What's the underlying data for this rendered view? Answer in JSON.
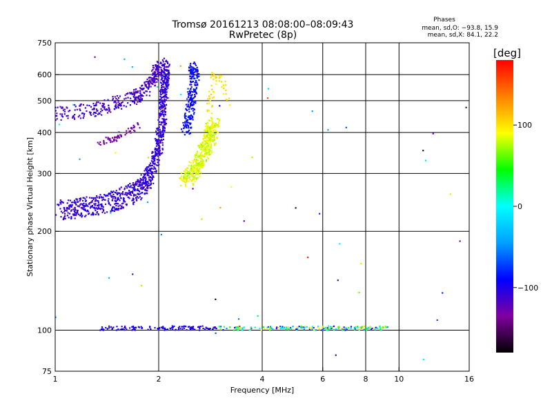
{
  "header": {
    "title_line1": "Tromsø 20161213 08:08:00–08:09:43",
    "title_line2": "RwPretec (8p)"
  },
  "stats": {
    "heading": "Phases",
    "line1": "mean, sd,O: −93.8, 15.9",
    "line2": "mean, sd,X:  84.1, 22.2"
  },
  "colorbar": {
    "label": "[deg]",
    "ticks": [
      {
        "value": 100,
        "label": "100"
      },
      {
        "value": 0,
        "label": "0"
      },
      {
        "value": -100,
        "label": "−100"
      }
    ],
    "range": [
      -180,
      180
    ],
    "scale_colors": [
      "#000000",
      "#8000a0",
      "#0000ff",
      "#00a0ff",
      "#00ffff",
      "#00ff00",
      "#ffff00",
      "#ff8000",
      "#ff0000"
    ]
  },
  "chart_data": {
    "type": "scatter",
    "xlabel": "Frequency [MHz]",
    "ylabel": "Stationary phase Virtual Height [km]",
    "xscale": "log",
    "yscale": "log",
    "xlim": [
      1,
      16
    ],
    "ylim": [
      75,
      750
    ],
    "xticks": [
      1,
      2,
      4,
      6,
      8,
      10,
      16
    ],
    "yticks": [
      75,
      100,
      200,
      300,
      400,
      500,
      600,
      750
    ],
    "xgrid": [
      2,
      4,
      6,
      8,
      10
    ],
    "ygrid": [
      100,
      200,
      300,
      400,
      500,
      600
    ],
    "series": [
      {
        "kind": "E-layer echoes",
        "freq_range": [
          1.35,
          9.3
        ],
        "height_km": [
          100,
          103
        ],
        "phase_deg": [
          -110,
          110
        ]
      },
      {
        "kind": "F-layer O-mode trace",
        "points": [
          [
            1.02,
            233
          ],
          [
            1.2,
            237
          ],
          [
            1.4,
            243
          ],
          [
            1.6,
            255
          ],
          [
            1.8,
            275
          ],
          [
            1.9,
            300
          ],
          [
            2.0,
            360
          ],
          [
            2.05,
            450
          ],
          [
            2.08,
            560
          ],
          [
            2.1,
            640
          ]
        ],
        "phase_deg": [
          -120,
          -95
        ]
      },
      {
        "kind": "upper O-mode trace",
        "points": [
          [
            1.0,
            455
          ],
          [
            1.3,
            470
          ],
          [
            1.5,
            490
          ],
          [
            1.7,
            510
          ],
          [
            1.85,
            545
          ],
          [
            1.95,
            600
          ],
          [
            2.0,
            640
          ]
        ],
        "phase_deg": [
          -130,
          -100
        ]
      },
      {
        "kind": "multi-hop trace",
        "points": [
          [
            1.35,
            375
          ],
          [
            1.5,
            385
          ],
          [
            1.65,
            405
          ],
          [
            1.75,
            425
          ]
        ],
        "phase_deg": [
          -140,
          -125
        ]
      },
      {
        "kind": "blue cusp near 2.45 MHz",
        "points": [
          [
            2.4,
            400
          ],
          [
            2.45,
            450
          ],
          [
            2.5,
            520
          ],
          [
            2.55,
            600
          ],
          [
            2.5,
            640
          ]
        ],
        "phase_deg": [
          -100,
          -80
        ]
      },
      {
        "kind": "X-mode trace",
        "points": [
          [
            2.4,
            285
          ],
          [
            2.5,
            300
          ],
          [
            2.6,
            320
          ],
          [
            2.7,
            345
          ],
          [
            2.8,
            375
          ],
          [
            2.85,
            400
          ],
          [
            2.88,
            430
          ]
        ],
        "phase_deg": [
          70,
          100
        ]
      },
      {
        "kind": "sparse X-mode top",
        "points": [
          [
            2.8,
            460
          ],
          [
            2.85,
            520
          ],
          [
            2.9,
            600
          ],
          [
            3.1,
            560
          ],
          [
            3.2,
            480
          ]
        ],
        "phase_deg": [
          90,
          110
        ]
      }
    ]
  }
}
